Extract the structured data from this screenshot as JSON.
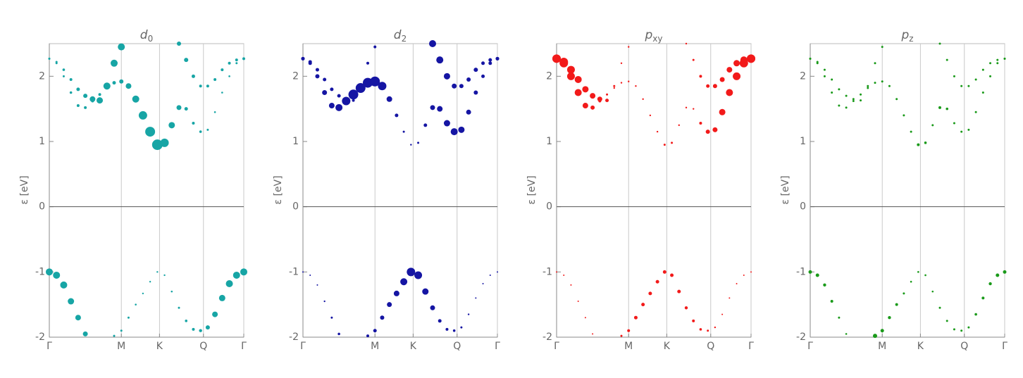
{
  "chart_data": [
    {
      "type": "scatter",
      "title": "d",
      "title_sub": "0",
      "ylabel": "ε [eV]",
      "x": [
        0,
        0.1,
        0.2,
        0.3,
        0.4,
        0.5,
        0.6,
        0.7,
        0.8,
        0.9,
        1.0,
        1.1,
        1.2,
        1.3,
        1.4,
        1.5,
        1.6,
        1.7,
        1.8,
        1.9,
        2.0,
        2.1,
        2.2,
        2.3,
        2.4,
        2.5,
        2.6,
        2.7
      ],
      "series": [
        {
          "color": "#17a5a5",
          "values": [
            -1.0,
            -1.05,
            -1.2,
            -1.45,
            -1.7,
            -1.95,
            null,
            null,
            null,
            -1.98,
            -1.9,
            -1.7,
            -1.5,
            -1.33,
            -1.15,
            -1.0,
            -1.05,
            -1.3,
            -1.55,
            -1.75,
            -1.88,
            -1.9,
            -1.85,
            -1.65,
            -1.4,
            -1.18,
            -1.05,
            -1.0
          ],
          "sizes": [
            5,
            5,
            5,
            4.5,
            4,
            3.5,
            null,
            null,
            null,
            1.5,
            1.5,
            1.5,
            1.3,
            1.2,
            1.2,
            1.2,
            1.2,
            1.3,
            1.5,
            1.8,
            2,
            2.2,
            3,
            4,
            4.5,
            5,
            5,
            5
          ]
        },
        {
          "color": "#17a5a5",
          "values": [
            2.27,
            2.2,
            2.0,
            1.75,
            1.55,
            1.52,
            1.62,
            1.72,
            1.82,
            1.9,
            1.92,
            1.85,
            1.65,
            1.4,
            1.15,
            0.95,
            0.98,
            1.25,
            1.52,
            1.5,
            1.28,
            1.15,
            1.18,
            1.45,
            1.75,
            2.0,
            2.2,
            2.27
          ],
          "sizes": [
            1.5,
            1.5,
            1.5,
            1.8,
            2,
            2,
            2,
            2,
            2,
            2.5,
            3,
            4,
            5,
            6,
            7,
            7.5,
            6,
            4.5,
            3.5,
            2.5,
            2,
            1.8,
            1.5,
            1.3,
            1.3,
            1.3,
            1.5,
            1.5
          ]
        },
        {
          "color": "#17a5a5",
          "values": [
            2.27,
            2.22,
            2.1,
            1.95,
            1.8,
            1.7,
            1.65,
            1.63,
            1.85,
            2.2,
            2.45,
            null,
            null,
            null,
            null,
            null,
            null,
            null,
            2.5,
            2.25,
            2.0,
            1.85,
            1.85,
            1.95,
            2.1,
            2.2,
            2.25,
            2.27
          ],
          "sizes": [
            1.5,
            1.5,
            1.8,
            2,
            2.5,
            3,
            4,
            4.5,
            5,
            5,
            5,
            null,
            null,
            null,
            null,
            null,
            null,
            null,
            3,
            3,
            2.5,
            2,
            2,
            2,
            2,
            2,
            2,
            2
          ]
        }
      ],
      "xlim": [
        0,
        2.7
      ],
      "xticks": [
        {
          "value": 0,
          "label": "Γ"
        },
        {
          "value": 1.0,
          "label": "M"
        },
        {
          "value": 1.53,
          "label": "K"
        },
        {
          "value": 2.14,
          "label": "Q"
        },
        {
          "value": 2.7,
          "label": "Γ"
        }
      ],
      "ylim": [
        -2,
        2.5
      ],
      "yticks": [
        -2,
        -1,
        0,
        1,
        2
      ],
      "grid": true,
      "hline": 0
    },
    {
      "type": "scatter",
      "title": "d",
      "title_sub": "2",
      "ylabel": "ε [eV]",
      "x": [
        0,
        0.1,
        0.2,
        0.3,
        0.4,
        0.5,
        0.6,
        0.7,
        0.8,
        0.9,
        1.0,
        1.1,
        1.2,
        1.3,
        1.4,
        1.5,
        1.6,
        1.7,
        1.8,
        1.9,
        2.0,
        2.1,
        2.2,
        2.3,
        2.4,
        2.5,
        2.6,
        2.7
      ],
      "series": [
        {
          "color": "#1515a3",
          "values": [
            -1.0,
            -1.05,
            -1.2,
            -1.45,
            -1.7,
            -1.95,
            null,
            null,
            null,
            -1.98,
            -1.9,
            -1.7,
            -1.5,
            -1.33,
            -1.15,
            -1.0,
            -1.05,
            -1.3,
            -1.55,
            -1.75,
            -1.88,
            -1.9,
            -1.85,
            -1.65,
            -1.4,
            -1.18,
            -1.05,
            -1.0
          ],
          "sizes": [
            1,
            1,
            1,
            1.2,
            1.5,
            1.8,
            null,
            null,
            null,
            2,
            2.5,
            3,
            3.5,
            4,
            5,
            6,
            5.5,
            4.5,
            3.5,
            2.5,
            2,
            1.8,
            1.5,
            1.2,
            1,
            1,
            1,
            1
          ]
        },
        {
          "color": "#1515a3",
          "values": [
            2.27,
            2.2,
            2.0,
            1.75,
            1.55,
            1.52,
            1.62,
            1.72,
            1.82,
            1.9,
            1.92,
            1.85,
            1.65,
            1.4,
            1.15,
            0.95,
            0.98,
            1.25,
            1.52,
            1.5,
            1.28,
            1.15,
            1.18,
            1.45,
            1.75,
            2.0,
            2.2,
            2.27
          ],
          "sizes": [
            2.5,
            2.5,
            3,
            3.5,
            4,
            5,
            6,
            7,
            7,
            7,
            7,
            6,
            4,
            2.5,
            1.5,
            1.2,
            1.5,
            2.5,
            3.5,
            4,
            4.5,
            5,
            4.5,
            3.5,
            3,
            2.5,
            2.5,
            2.5
          ]
        },
        {
          "color": "#1515a3",
          "values": [
            2.27,
            2.22,
            2.1,
            1.95,
            1.8,
            1.7,
            1.65,
            1.63,
            1.85,
            2.2,
            2.45,
            null,
            null,
            null,
            null,
            null,
            null,
            null,
            2.5,
            2.25,
            2.0,
            1.85,
            1.85,
            1.95,
            2.1,
            2.2,
            2.25,
            2.27
          ],
          "sizes": [
            2.5,
            2.5,
            2.5,
            2.5,
            2.5,
            2.5,
            2.5,
            2,
            2,
            2,
            2,
            null,
            null,
            null,
            null,
            null,
            null,
            null,
            5,
            5,
            4.5,
            3.5,
            3,
            3,
            3,
            2.5,
            2.5,
            2.5
          ]
        }
      ],
      "xlim": [
        0,
        2.7
      ],
      "xticks": [
        {
          "value": 0,
          "label": "Γ"
        },
        {
          "value": 1.0,
          "label": "M"
        },
        {
          "value": 1.53,
          "label": "K"
        },
        {
          "value": 2.14,
          "label": "Q"
        },
        {
          "value": 2.7,
          "label": "Γ"
        }
      ],
      "ylim": [
        -2,
        2.5
      ],
      "yticks": [
        -2,
        -1,
        0,
        1,
        2
      ],
      "grid": true,
      "hline": 0
    },
    {
      "type": "scatter",
      "title": "p",
      "title_sub": "xy",
      "ylabel": "ε [eV]",
      "x": [
        0,
        0.1,
        0.2,
        0.3,
        0.4,
        0.5,
        0.6,
        0.7,
        0.8,
        0.9,
        1.0,
        1.1,
        1.2,
        1.3,
        1.4,
        1.5,
        1.6,
        1.7,
        1.8,
        1.9,
        2.0,
        2.1,
        2.2,
        2.3,
        2.4,
        2.5,
        2.6,
        2.7
      ],
      "series": [
        {
          "color": "#f21a1a",
          "values": [
            -1.0,
            -1.05,
            -1.2,
            -1.45,
            -1.7,
            -1.95,
            null,
            null,
            null,
            -1.98,
            -1.9,
            -1.7,
            -1.5,
            -1.33,
            -1.15,
            -1.0,
            -1.05,
            -1.3,
            -1.55,
            -1.75,
            -1.88,
            -1.9,
            -1.85,
            -1.65,
            -1.4,
            -1.18,
            -1.05,
            -1.0
          ],
          "sizes": [
            1,
            1,
            1,
            1,
            1,
            1,
            null,
            null,
            null,
            1.5,
            2,
            2.5,
            2.5,
            2.5,
            2.5,
            2.5,
            2.5,
            2.5,
            2.2,
            2,
            1.8,
            1.5,
            1.2,
            1,
            1,
            1,
            1,
            1
          ]
        },
        {
          "color": "#f21a1a",
          "values": [
            2.27,
            2.2,
            2.0,
            1.75,
            1.55,
            1.52,
            1.62,
            1.72,
            1.82,
            1.9,
            1.92,
            1.85,
            1.65,
            1.4,
            1.15,
            0.95,
            0.98,
            1.25,
            1.52,
            1.5,
            1.28,
            1.15,
            1.18,
            1.45,
            1.75,
            2.0,
            2.2,
            2.27
          ],
          "sizes": [
            6,
            6,
            5.5,
            5,
            4,
            3,
            2,
            1.5,
            1.2,
            1.2,
            1.2,
            1.2,
            1.2,
            1.2,
            1.2,
            1.5,
            1.5,
            1.2,
            1.2,
            1.2,
            2,
            3,
            3.5,
            4.5,
            5,
            5.5,
            6,
            6
          ]
        },
        {
          "color": "#f21a1a",
          "values": [
            2.27,
            2.22,
            2.1,
            1.95,
            1.8,
            1.7,
            1.65,
            1.63,
            1.85,
            2.2,
            2.45,
            null,
            null,
            null,
            null,
            null,
            null,
            null,
            2.5,
            2.25,
            2.0,
            1.85,
            1.85,
            1.95,
            2.1,
            2.2,
            2.25,
            2.27
          ],
          "sizes": [
            6,
            6,
            5.5,
            5,
            4.5,
            4,
            3.5,
            2.5,
            1.5,
            1.2,
            1.2,
            null,
            null,
            null,
            null,
            null,
            null,
            null,
            1.2,
            1.5,
            2,
            2.5,
            3,
            3.5,
            4,
            4.5,
            5,
            6
          ]
        }
      ],
      "xlim": [
        0,
        2.7
      ],
      "xticks": [
        {
          "value": 0,
          "label": "Γ"
        },
        {
          "value": 1.0,
          "label": "M"
        },
        {
          "value": 1.53,
          "label": "K"
        },
        {
          "value": 2.14,
          "label": "Q"
        },
        {
          "value": 2.7,
          "label": "Γ"
        }
      ],
      "ylim": [
        -2,
        2.5
      ],
      "yticks": [
        -2,
        -1,
        0,
        1,
        2
      ],
      "grid": true,
      "hline": 0
    },
    {
      "type": "scatter",
      "title": "p",
      "title_sub": "z",
      "ylabel": "ε [eV]",
      "x": [
        0,
        0.1,
        0.2,
        0.3,
        0.4,
        0.5,
        0.6,
        0.7,
        0.8,
        0.9,
        1.0,
        1.1,
        1.2,
        1.3,
        1.4,
        1.5,
        1.6,
        1.7,
        1.8,
        1.9,
        2.0,
        2.1,
        2.2,
        2.3,
        2.4,
        2.5,
        2.6,
        2.7
      ],
      "series": [
        {
          "color": "#1a9a1a",
          "values": [
            -1.0,
            -1.05,
            -1.2,
            -1.45,
            -1.7,
            -1.95,
            null,
            null,
            null,
            -1.98,
            -1.9,
            -1.7,
            -1.5,
            -1.33,
            -1.15,
            -1.0,
            -1.05,
            -1.3,
            -1.55,
            -1.75,
            -1.88,
            -1.9,
            -1.85,
            -1.65,
            -1.4,
            -1.18,
            -1.05,
            -1.0
          ],
          "sizes": [
            2.5,
            2.5,
            2.2,
            2,
            1.5,
            1.3,
            null,
            null,
            null,
            3,
            2.5,
            2.2,
            2,
            1.5,
            1.3,
            1.3,
            1.3,
            1.3,
            1.5,
            1.5,
            1.5,
            1.5,
            1.5,
            1.8,
            2,
            2.2,
            2.5,
            2.5
          ]
        },
        {
          "color": "#1a9a1a",
          "values": [
            2.27,
            2.2,
            2.0,
            1.75,
            1.55,
            1.52,
            1.62,
            1.72,
            1.82,
            1.9,
            1.92,
            1.85,
            1.65,
            1.4,
            1.15,
            0.95,
            0.98,
            1.25,
            1.52,
            1.5,
            1.28,
            1.15,
            1.18,
            1.45,
            1.75,
            2.0,
            2.2,
            2.27
          ],
          "sizes": [
            1.5,
            1.5,
            1.5,
            1.5,
            1.5,
            1.5,
            1.5,
            1.5,
            1.5,
            1.5,
            1.5,
            1.5,
            1.5,
            1.5,
            1.5,
            2,
            1.8,
            1.5,
            2,
            1.8,
            1.5,
            1.5,
            1.5,
            1.5,
            1.5,
            1.5,
            1.5,
            1.5
          ]
        },
        {
          "color": "#1a9a1a",
          "values": [
            2.27,
            2.22,
            2.1,
            1.95,
            1.8,
            1.7,
            1.65,
            1.63,
            1.85,
            2.2,
            2.45,
            null,
            null,
            null,
            null,
            null,
            null,
            null,
            2.5,
            2.25,
            2.0,
            1.85,
            1.85,
            1.95,
            2.1,
            2.2,
            2.25,
            2.27
          ],
          "sizes": [
            1.5,
            1.5,
            1.5,
            1.5,
            1.5,
            1.5,
            1.5,
            1.5,
            1.5,
            1.5,
            1.5,
            null,
            null,
            null,
            null,
            null,
            null,
            null,
            1.5,
            1.5,
            1.5,
            1.5,
            1.5,
            1.5,
            1.5,
            1.5,
            1.5,
            1.5
          ]
        }
      ],
      "xlim": [
        0,
        2.7
      ],
      "xticks": [
        {
          "value": 0,
          "label": "Γ"
        },
        {
          "value": 1.0,
          "label": "M"
        },
        {
          "value": 1.53,
          "label": "K"
        },
        {
          "value": 2.14,
          "label": "Q"
        },
        {
          "value": 2.7,
          "label": "Γ"
        }
      ],
      "ylim": [
        -2,
        2.5
      ],
      "yticks": [
        -2,
        -1,
        0,
        1,
        2
      ],
      "grid": true,
      "hline": 0
    }
  ]
}
